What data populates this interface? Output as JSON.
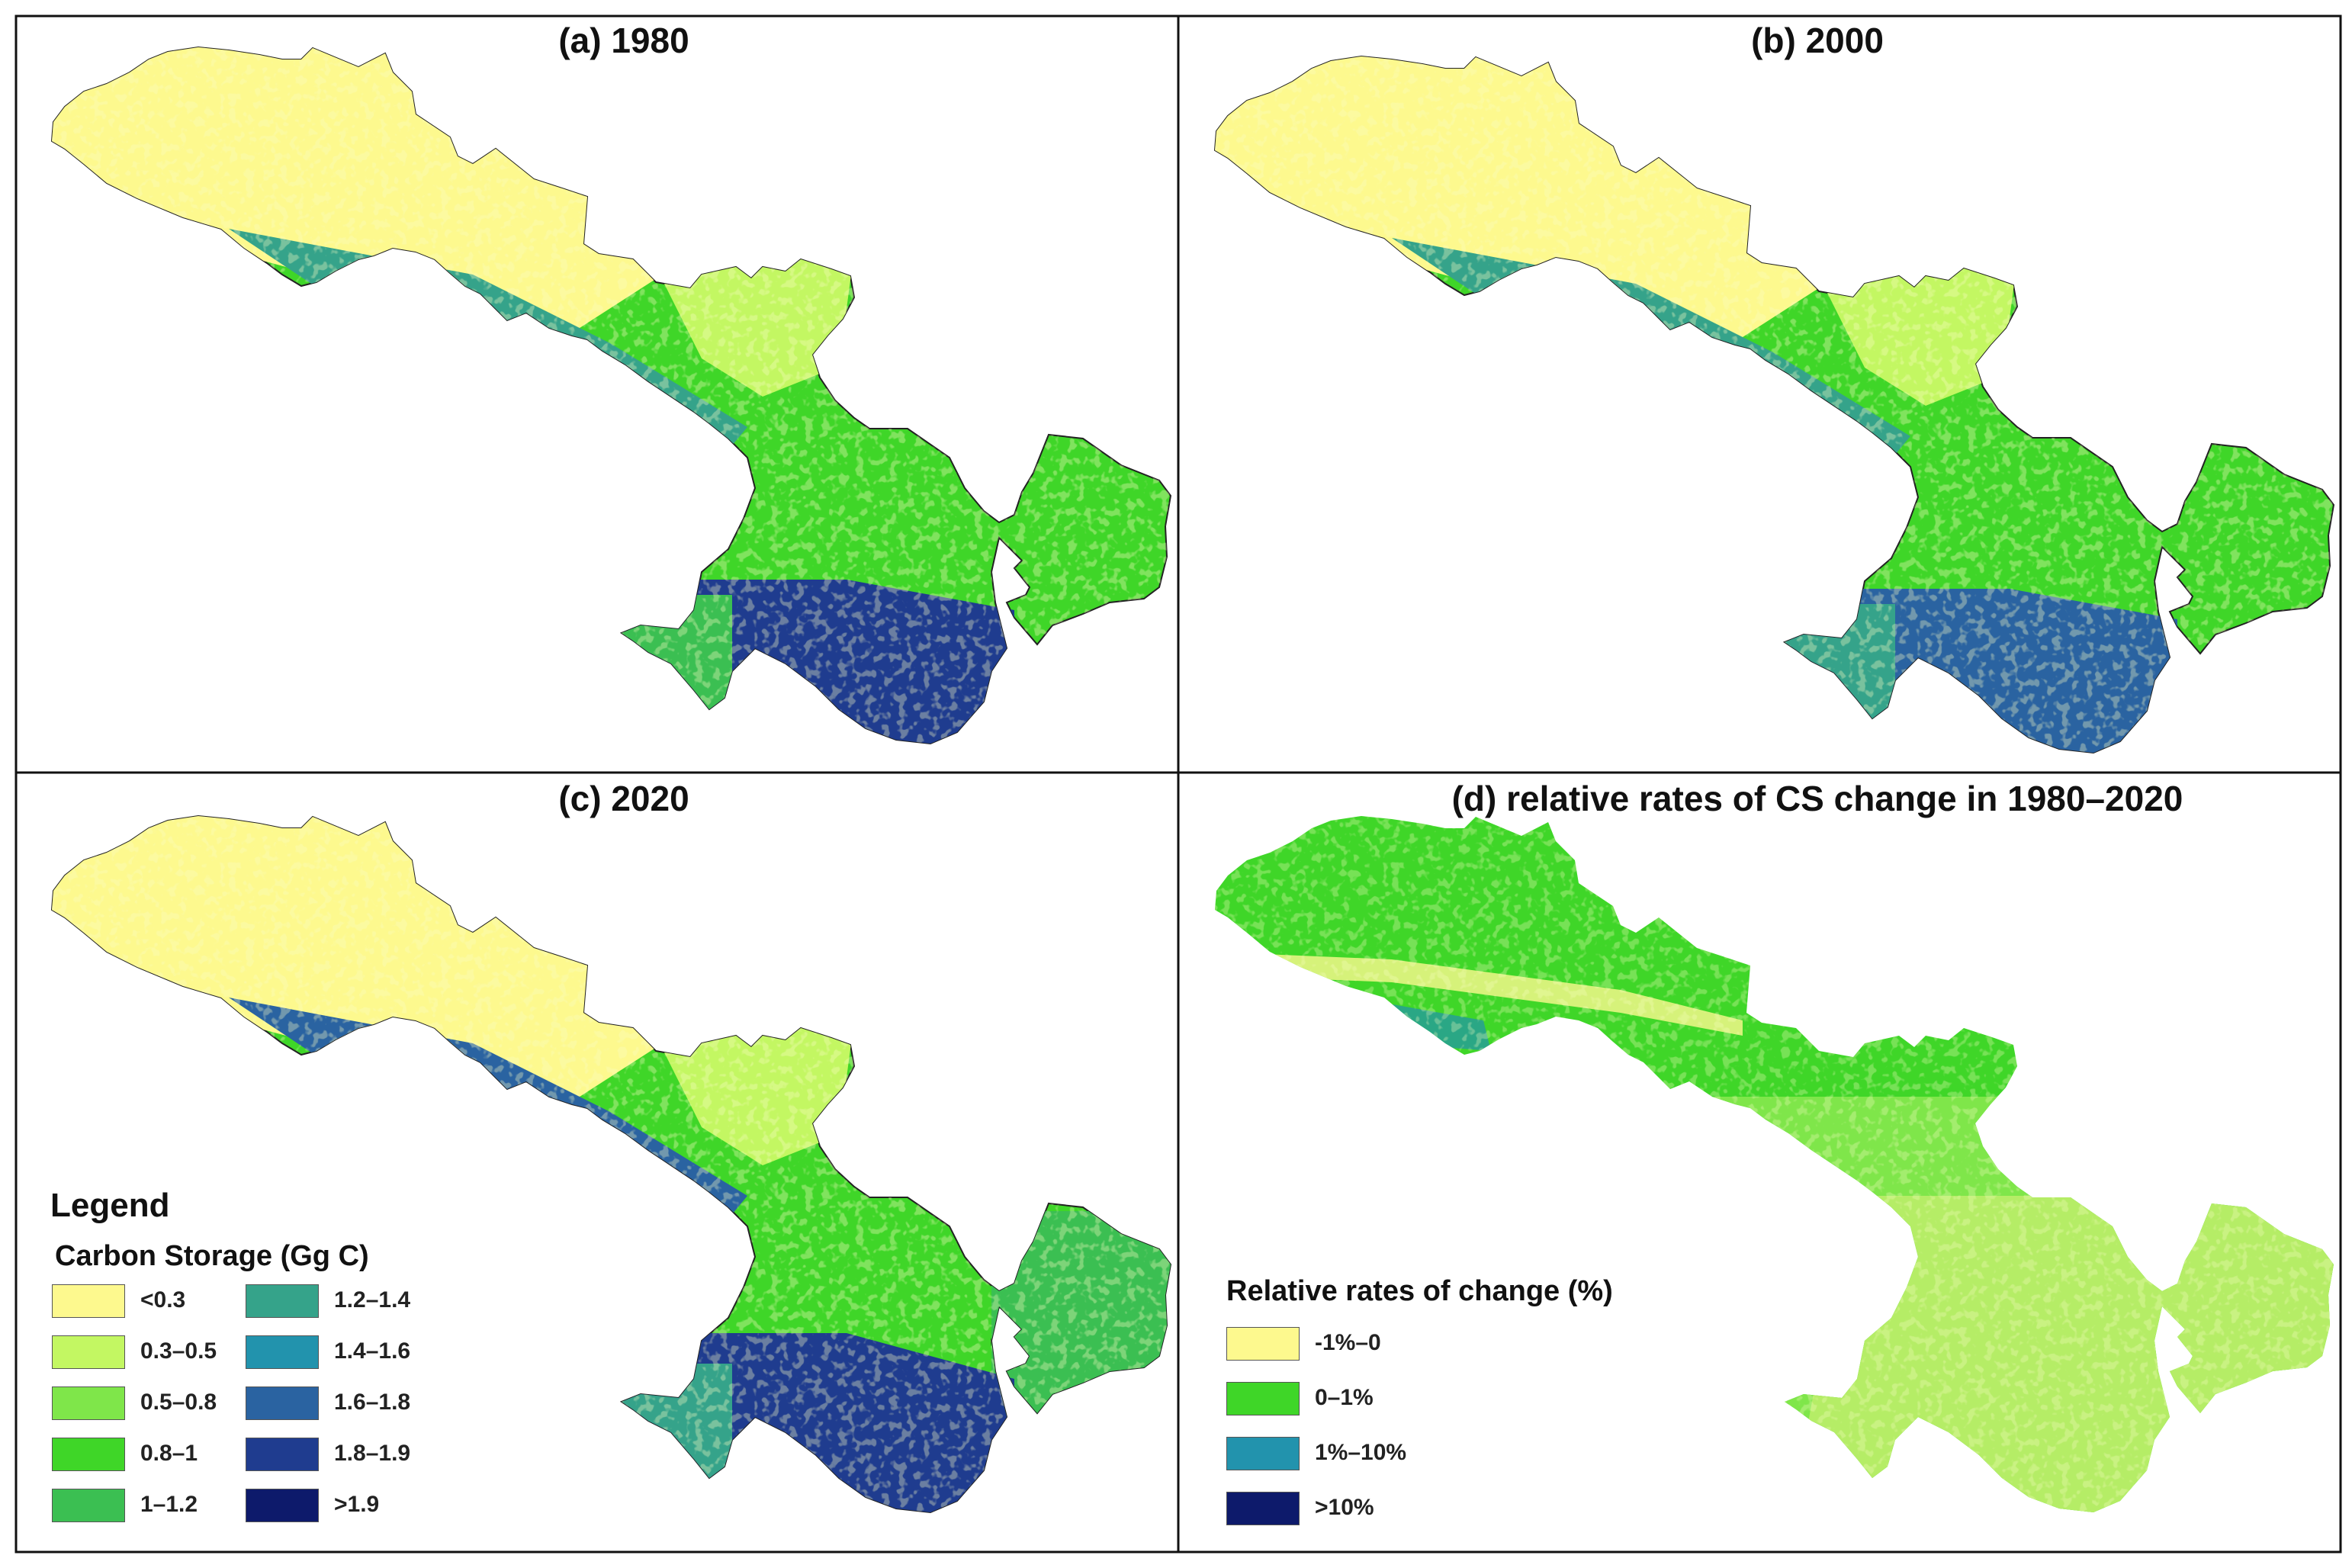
{
  "panels": [
    {
      "title": "(a) 1980",
      "map": "carbon-storage"
    },
    {
      "title": "(b) 2000",
      "map": "carbon-storage"
    },
    {
      "title": "(c) 2020",
      "map": "carbon-storage"
    },
    {
      "title": "(d) relative rates of CS change in 1980–2020",
      "map": "relative-change"
    }
  ],
  "carbon_legend": {
    "heading": "Legend",
    "subheading": "Carbon Storage (Gg C)",
    "classes": [
      {
        "label": "<0.3",
        "color": "#fdf98e"
      },
      {
        "label": "0.3–0.5",
        "color": "#c3f762"
      },
      {
        "label": "0.5–0.8",
        "color": "#7fe64a"
      },
      {
        "label": "0.8–1",
        "color": "#3fd628"
      },
      {
        "label": "1–1.2",
        "color": "#3bbf52"
      },
      {
        "label": "1.2–1.4",
        "color": "#35a38a"
      },
      {
        "label": "1.4–1.6",
        "color": "#2293ad"
      },
      {
        "label": "1.6–1.8",
        "color": "#2a63a1"
      },
      {
        "label": "1.8–1.9",
        "color": "#1f3c8f"
      },
      {
        "label": ">1.9",
        "color": "#0d1a6b"
      }
    ]
  },
  "change_legend": {
    "heading": "Relative rates of change (%)",
    "classes": [
      {
        "label": "-1%–0",
        "color": "#fdf98e"
      },
      {
        "label": "0–1%",
        "color": "#3fd628"
      },
      {
        "label": "1%–10%",
        "color": "#2293ad"
      },
      {
        "label": ">10%",
        "color": "#0d1a6b"
      }
    ]
  }
}
